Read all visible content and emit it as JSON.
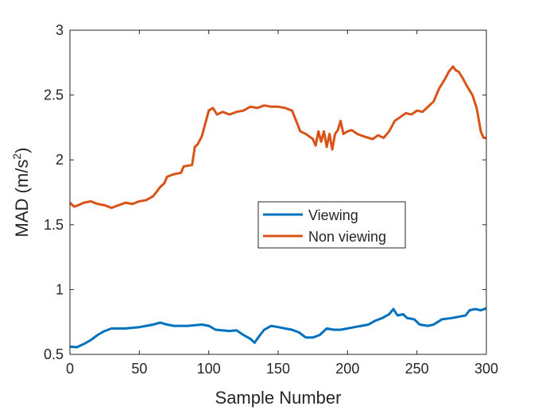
{
  "chart_data": {
    "type": "line",
    "title": "",
    "xlabel": "Sample Number",
    "ylabel_main": "MAD (m/s",
    "ylabel_sup": "2",
    "ylabel_close": ")",
    "xlim": [
      0,
      300
    ],
    "ylim": [
      0.5,
      3
    ],
    "xticks": [
      0,
      50,
      100,
      150,
      200,
      250,
      300
    ],
    "xtick_labels": [
      "0",
      "50",
      "100",
      "150",
      "200",
      "250",
      "300"
    ],
    "yticks": [
      0.5,
      1,
      1.5,
      2,
      2.5,
      3
    ],
    "ytick_labels": [
      "0.5",
      "1",
      "1.5",
      "2",
      "2.5",
      "3"
    ],
    "grid": false,
    "legend_position": "center-right",
    "series": [
      {
        "name": "Viewing",
        "color": "#0072BD",
        "points": [
          [
            0,
            0.56
          ],
          [
            5,
            0.555
          ],
          [
            10,
            0.58
          ],
          [
            15,
            0.61
          ],
          [
            20,
            0.65
          ],
          [
            25,
            0.68
          ],
          [
            30,
            0.7
          ],
          [
            40,
            0.7
          ],
          [
            50,
            0.71
          ],
          [
            55,
            0.72
          ],
          [
            60,
            0.73
          ],
          [
            65,
            0.745
          ],
          [
            70,
            0.73
          ],
          [
            75,
            0.72
          ],
          [
            85,
            0.72
          ],
          [
            95,
            0.73
          ],
          [
            100,
            0.72
          ],
          [
            105,
            0.69
          ],
          [
            115,
            0.68
          ],
          [
            120,
            0.685
          ],
          [
            125,
            0.65
          ],
          [
            130,
            0.62
          ],
          [
            133,
            0.59
          ],
          [
            137,
            0.65
          ],
          [
            140,
            0.69
          ],
          [
            145,
            0.72
          ],
          [
            150,
            0.71
          ],
          [
            155,
            0.7
          ],
          [
            160,
            0.69
          ],
          [
            165,
            0.67
          ],
          [
            170,
            0.63
          ],
          [
            175,
            0.63
          ],
          [
            180,
            0.65
          ],
          [
            185,
            0.7
          ],
          [
            190,
            0.69
          ],
          [
            195,
            0.69
          ],
          [
            200,
            0.7
          ],
          [
            205,
            0.71
          ],
          [
            210,
            0.72
          ],
          [
            215,
            0.73
          ],
          [
            220,
            0.76
          ],
          [
            225,
            0.78
          ],
          [
            230,
            0.81
          ],
          [
            233,
            0.85
          ],
          [
            236,
            0.8
          ],
          [
            240,
            0.81
          ],
          [
            243,
            0.78
          ],
          [
            248,
            0.77
          ],
          [
            252,
            0.73
          ],
          [
            258,
            0.72
          ],
          [
            262,
            0.73
          ],
          [
            265,
            0.75
          ],
          [
            268,
            0.77
          ],
          [
            275,
            0.78
          ],
          [
            280,
            0.79
          ],
          [
            285,
            0.8
          ],
          [
            288,
            0.84
          ],
          [
            292,
            0.85
          ],
          [
            296,
            0.84
          ],
          [
            300,
            0.855
          ]
        ]
      },
      {
        "name": "Non viewing",
        "color": "#D95319",
        "points": [
          [
            0,
            1.67
          ],
          [
            3,
            1.64
          ],
          [
            6,
            1.65
          ],
          [
            10,
            1.67
          ],
          [
            15,
            1.68
          ],
          [
            20,
            1.66
          ],
          [
            25,
            1.65
          ],
          [
            30,
            1.63
          ],
          [
            35,
            1.65
          ],
          [
            40,
            1.67
          ],
          [
            45,
            1.66
          ],
          [
            50,
            1.68
          ],
          [
            55,
            1.69
          ],
          [
            60,
            1.72
          ],
          [
            65,
            1.79
          ],
          [
            68,
            1.82
          ],
          [
            70,
            1.87
          ],
          [
            75,
            1.89
          ],
          [
            80,
            1.9
          ],
          [
            82,
            1.95
          ],
          [
            88,
            1.96
          ],
          [
            90,
            2.1
          ],
          [
            92,
            2.12
          ],
          [
            95,
            2.18
          ],
          [
            98,
            2.3
          ],
          [
            100,
            2.38
          ],
          [
            103,
            2.4
          ],
          [
            106,
            2.35
          ],
          [
            110,
            2.37
          ],
          [
            115,
            2.35
          ],
          [
            120,
            2.37
          ],
          [
            125,
            2.38
          ],
          [
            130,
            2.41
          ],
          [
            135,
            2.4
          ],
          [
            140,
            2.42
          ],
          [
            145,
            2.41
          ],
          [
            150,
            2.41
          ],
          [
            155,
            2.4
          ],
          [
            160,
            2.38
          ],
          [
            163,
            2.3
          ],
          [
            166,
            2.22
          ],
          [
            170,
            2.2
          ],
          [
            175,
            2.16
          ],
          [
            177,
            2.11
          ],
          [
            179,
            2.22
          ],
          [
            181,
            2.14
          ],
          [
            183,
            2.22
          ],
          [
            185,
            2.1
          ],
          [
            187,
            2.2
          ],
          [
            189,
            2.08
          ],
          [
            191,
            2.2
          ],
          [
            193,
            2.23
          ],
          [
            195,
            2.3
          ],
          [
            197,
            2.2
          ],
          [
            200,
            2.22
          ],
          [
            203,
            2.23
          ],
          [
            207,
            2.2
          ],
          [
            212,
            2.18
          ],
          [
            218,
            2.16
          ],
          [
            222,
            2.19
          ],
          [
            226,
            2.17
          ],
          [
            230,
            2.22
          ],
          [
            234,
            2.3
          ],
          [
            238,
            2.33
          ],
          [
            242,
            2.36
          ],
          [
            246,
            2.35
          ],
          [
            250,
            2.38
          ],
          [
            254,
            2.37
          ],
          [
            258,
            2.41
          ],
          [
            262,
            2.45
          ],
          [
            266,
            2.55
          ],
          [
            270,
            2.62
          ],
          [
            273,
            2.68
          ],
          [
            276,
            2.72
          ],
          [
            278,
            2.69
          ],
          [
            280,
            2.68
          ],
          [
            283,
            2.63
          ],
          [
            286,
            2.57
          ],
          [
            290,
            2.5
          ],
          [
            293,
            2.4
          ],
          [
            296,
            2.22
          ],
          [
            298,
            2.17
          ],
          [
            300,
            2.17
          ]
        ]
      }
    ]
  }
}
